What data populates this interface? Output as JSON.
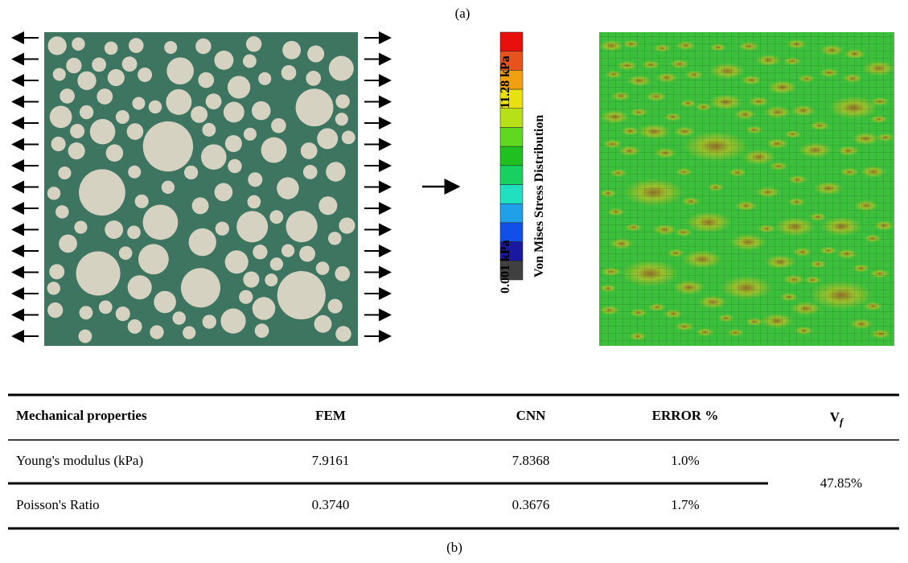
{
  "figure": {
    "label_a": "(a)",
    "label_b": "(b)",
    "colorbar": {
      "max_label": "11.28 kPa",
      "min_label": "0.001 kPa",
      "title": "Von Mises Stress Distribution"
    },
    "table": {
      "header": [
        "Mechanical properties",
        "FEM",
        "CNN",
        "ERROR %"
      ],
      "vf_header": {
        "main": "V",
        "sub": "f"
      },
      "rows": [
        [
          "Young's modulus (kPa)",
          "7.9161",
          "7.8368",
          "1.0%"
        ],
        [
          "Poisson's Ratio",
          "0.3740",
          "0.3676",
          "1.7%"
        ]
      ],
      "vf_value": "47.85%"
    }
  }
}
